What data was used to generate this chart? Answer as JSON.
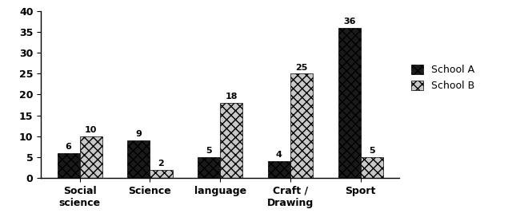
{
  "categories": [
    "Social\nscience",
    "Science",
    "language",
    "Craft /\nDrawing",
    "Sport"
  ],
  "school_a": [
    6,
    9,
    5,
    4,
    36
  ],
  "school_b": [
    10,
    2,
    18,
    25,
    5
  ],
  "school_a_label": "School A",
  "school_b_label": "School B",
  "ylim": [
    0,
    40
  ],
  "yticks": [
    0,
    5,
    10,
    15,
    20,
    25,
    30,
    35,
    40
  ],
  "bar_width": 0.32,
  "color_a": "#1a1a1a",
  "color_b": "#c8c8c8",
  "hatch_a": "xxx",
  "hatch_b": "xxx",
  "tick_fontsize": 9,
  "legend_fontsize": 9,
  "value_fontsize": 8,
  "background_color": "#ffffff"
}
